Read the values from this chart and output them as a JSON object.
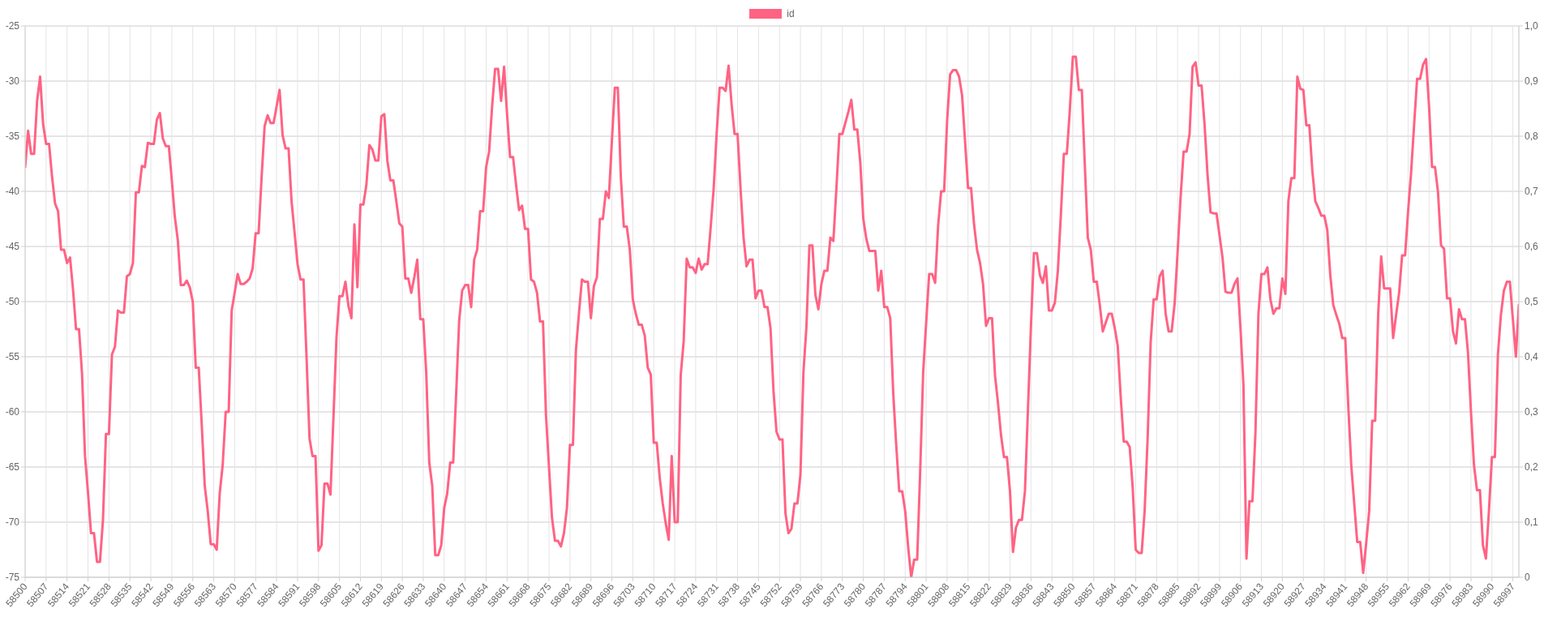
{
  "chart_data": {
    "type": "line",
    "series": [
      {
        "name": "id",
        "color": "#ff6384",
        "x": [
          58500,
          58501,
          58502,
          58503,
          58504,
          58505,
          58506,
          58507,
          58508,
          58509,
          58510,
          58511,
          58512,
          58513,
          58514,
          58515,
          58516,
          58517,
          58518,
          58519,
          58520,
          58521,
          58522,
          58523,
          58524,
          58525,
          58526,
          58527,
          58528,
          58529,
          58530,
          58531,
          58532,
          58533,
          58534,
          58535,
          58536,
          58537,
          58538,
          58539,
          58540,
          58541,
          58542,
          58543,
          58544,
          58545,
          58546,
          58547,
          58548,
          58549,
          58550,
          58551,
          58552,
          58553,
          58554,
          58555,
          58556,
          58557,
          58558,
          58559,
          58560,
          58561,
          58562,
          58563,
          58564,
          58565,
          58566,
          58567,
          58568,
          58569,
          58570,
          58571,
          58572,
          58573,
          58574,
          58575,
          58576,
          58577,
          58578,
          58579,
          58580,
          58581,
          58582,
          58583,
          58584,
          58585,
          58586,
          58587,
          58588,
          58589,
          58590,
          58591,
          58592,
          58593,
          58594,
          58595,
          58596,
          58597,
          58598,
          58599,
          58600,
          58601,
          58602,
          58603,
          58604,
          58605,
          58606,
          58607,
          58608,
          58609,
          58610,
          58611,
          58612,
          58613,
          58614,
          58615,
          58616,
          58617,
          58618,
          58619,
          58620,
          58621,
          58622,
          58623,
          58624,
          58625,
          58626,
          58627,
          58628,
          58629,
          58630,
          58631,
          58632,
          58633,
          58634,
          58635,
          58636,
          58637,
          58638,
          58639,
          58640,
          58641,
          58642,
          58643,
          58644,
          58645,
          58646,
          58647,
          58648,
          58649,
          58650,
          58651,
          58652,
          58653,
          58654,
          58655,
          58656,
          58657,
          58658,
          58659,
          58660,
          58661,
          58662,
          58663,
          58664,
          58665,
          58666,
          58667,
          58668,
          58669,
          58670,
          58671,
          58672,
          58673,
          58674,
          58675,
          58676,
          58677,
          58678,
          58679,
          58680,
          58681,
          58682,
          58683,
          58684,
          58685,
          58686,
          58687,
          58688,
          58689,
          58690,
          58691,
          58692,
          58693,
          58694,
          58695,
          58696,
          58697,
          58698,
          58699,
          58700,
          58701,
          58702,
          58703,
          58704,
          58705,
          58706,
          58707,
          58708,
          58709,
          58710,
          58711,
          58712,
          58713,
          58714,
          58715,
          58716,
          58717,
          58718,
          58719,
          58720,
          58721,
          58722,
          58723,
          58724,
          58725,
          58726,
          58727,
          58728,
          58729,
          58730,
          58731,
          58732,
          58733,
          58734,
          58735,
          58736,
          58737,
          58738,
          58739,
          58740,
          58741,
          58742,
          58743,
          58744,
          58745,
          58746,
          58747,
          58748,
          58749,
          58750,
          58751,
          58752,
          58753,
          58754,
          58755,
          58756,
          58757,
          58758,
          58759,
          58760,
          58761,
          58762,
          58763,
          58764,
          58765,
          58766,
          58767,
          58768,
          58769,
          58770,
          58771,
          58772,
          58773,
          58774,
          58775,
          58776,
          58777,
          58778,
          58779,
          58780,
          58781,
          58782,
          58783,
          58784,
          58785,
          58786,
          58787,
          58788,
          58789,
          58790,
          58791,
          58792,
          58793,
          58794,
          58795,
          58796,
          58797,
          58798,
          58799,
          58800,
          58801,
          58802,
          58803,
          58804,
          58805,
          58806,
          58807,
          58808,
          58809,
          58810,
          58811,
          58812,
          58813,
          58814,
          58815,
          58816,
          58817,
          58818,
          58819,
          58820,
          58821,
          58822,
          58823,
          58824,
          58825,
          58826,
          58827,
          58828,
          58829,
          58830,
          58831,
          58832,
          58833,
          58834,
          58835,
          58836,
          58837,
          58838,
          58839,
          58840,
          58841,
          58842,
          58843,
          58844,
          58845,
          58846,
          58847,
          58848,
          58849,
          58850,
          58851,
          58852,
          58853,
          58854,
          58855,
          58856,
          58857,
          58858,
          58859,
          58860,
          58861,
          58862,
          58863,
          58864,
          58865,
          58866,
          58867,
          58868,
          58869,
          58870,
          58871,
          58872,
          58873,
          58874,
          58875,
          58876,
          58877,
          58878,
          58879,
          58880,
          58881,
          58882,
          58883,
          58884,
          58885,
          58886,
          58887,
          58888,
          58889,
          58890,
          58891,
          58892,
          58893,
          58894,
          58895,
          58896,
          58897,
          58898,
          58899,
          58900,
          58901,
          58902,
          58903,
          58904,
          58905,
          58906,
          58907,
          58908,
          58909,
          58910,
          58911,
          58912,
          58913,
          58914,
          58915,
          58916,
          58917,
          58918,
          58919,
          58920,
          58921,
          58922,
          58923,
          58924,
          58925,
          58926,
          58927,
          58928,
          58929,
          58930,
          58931,
          58932,
          58933,
          58934,
          58935,
          58936,
          58937,
          58938,
          58939,
          58940,
          58941,
          58942,
          58943,
          58944,
          58945,
          58946,
          58947,
          58948,
          58949,
          58950,
          58951,
          58952,
          58953,
          58954,
          58955,
          58956,
          58957,
          58958,
          58959,
          58960,
          58961,
          58962,
          58963,
          58964,
          58965,
          58966,
          58967,
          58968,
          58969,
          58970,
          58971,
          58972,
          58973,
          58974,
          58975,
          58976,
          58977,
          58978,
          58979,
          58980,
          58981,
          58982,
          58983,
          58984,
          58985,
          58986,
          58987,
          58988,
          58989,
          58990,
          58991,
          58992,
          58993,
          58994,
          58995,
          58996,
          58997,
          58998,
          58999
        ],
        "values": [
          -37.8,
          -34.5,
          -36.6,
          -36.6,
          -31.8,
          -29.6,
          -33.9,
          -35.7,
          -35.7,
          -38.7,
          -41.1,
          -41.8,
          -45.3,
          -45.3,
          -46.5,
          -46.0,
          -48.9,
          -52.5,
          -52.5,
          -56.5,
          -64.0,
          -67.3,
          -71.0,
          -71.0,
          -73.6,
          -73.6,
          -69.8,
          -62.0,
          -62.0,
          -54.8,
          -54.1,
          -50.8,
          -51.0,
          -51.0,
          -47.7,
          -47.5,
          -46.5,
          -40.1,
          -40.1,
          -37.7,
          -37.8,
          -35.6,
          -35.7,
          -35.7,
          -33.5,
          -32.9,
          -35.2,
          -35.9,
          -35.9,
          -39.0,
          -42.3,
          -44.4,
          -48.5,
          -48.5,
          -48.1,
          -48.7,
          -50.0,
          -56.0,
          -56.0,
          -61.2,
          -66.7,
          -69.0,
          -72.0,
          -72.0,
          -72.5,
          -67.4,
          -64.8,
          -60.0,
          -60.0,
          -50.8,
          -49.2,
          -47.5,
          -48.4,
          -48.4,
          -48.2,
          -47.9,
          -47.0,
          -43.8,
          -43.8,
          -38.7,
          -34.1,
          -33.1,
          -33.8,
          -33.8,
          -32.3,
          -30.8,
          -34.9,
          -36.1,
          -36.1,
          -40.9,
          -43.7,
          -46.6,
          -48.0,
          -48.0,
          -55.0,
          -62.4,
          -64.0,
          -64.0,
          -72.6,
          -72.1,
          -66.5,
          -66.5,
          -67.5,
          -60.5,
          -53.3,
          -49.5,
          -49.5,
          -48.2,
          -50.4,
          -51.5,
          -43.0,
          -48.7,
          -41.2,
          -41.2,
          -39.4,
          -35.8,
          -36.2,
          -37.2,
          -37.2,
          -33.2,
          -33.0,
          -37.2,
          -39.0,
          -39.0,
          -40.9,
          -42.9,
          -43.2,
          -47.9,
          -47.9,
          -49.2,
          -47.8,
          -46.2,
          -51.6,
          -51.6,
          -56.5,
          -64.6,
          -66.7,
          -73.0,
          -73.0,
          -72.1,
          -68.7,
          -67.4,
          -64.6,
          -64.6,
          -58.3,
          -51.7,
          -49.0,
          -48.5,
          -48.5,
          -50.5,
          -46.2,
          -45.3,
          -41.8,
          -41.8,
          -37.8,
          -36.4,
          -32.3,
          -28.9,
          -28.9,
          -31.8,
          -28.7,
          -33.0,
          -36.9,
          -36.9,
          -39.4,
          -41.7,
          -41.3,
          -43.4,
          -43.4,
          -48.0,
          -48.2,
          -49.2,
          -51.8,
          -51.8,
          -60.3,
          -65.0,
          -69.6,
          -71.7,
          -71.7,
          -72.2,
          -71.0,
          -68.7,
          -63.0,
          -63.0,
          -54.4,
          -51.1,
          -48.0,
          -48.2,
          -48.2,
          -51.5,
          -48.6,
          -47.8,
          -42.5,
          -42.5,
          -40.0,
          -40.6,
          -35.5,
          -30.6,
          -30.6,
          -38.7,
          -43.2,
          -43.2,
          -45.3,
          -49.8,
          -51.1,
          -52.1,
          -52.1,
          -53.1,
          -56.0,
          -56.6,
          -62.8,
          -62.8,
          -66.0,
          -68.3,
          -70.1,
          -71.6,
          -64.0,
          -70.0,
          -70.0,
          -56.7,
          -53.6,
          -46.1,
          -46.9,
          -46.9,
          -47.4,
          -46.1,
          -47.1,
          -46.6,
          -46.6,
          -43.3,
          -39.8,
          -34.8,
          -30.6,
          -30.6,
          -30.9,
          -28.6,
          -32.1,
          -34.8,
          -34.8,
          -39.8,
          -44.2,
          -46.8,
          -46.2,
          -46.2,
          -49.7,
          -49.0,
          -49.0,
          -50.5,
          -50.5,
          -52.4,
          -58.1,
          -61.8,
          -62.5,
          -62.5,
          -69.2,
          -71.0,
          -70.6,
          -68.3,
          -68.3,
          -65.7,
          -56.4,
          -52.3,
          -44.9,
          -44.9,
          -49.4,
          -50.7,
          -48.4,
          -47.2,
          -47.2,
          -44.2,
          -44.5,
          -39.8,
          -34.8,
          -34.8,
          -33.8,
          -32.8,
          -31.7,
          -34.4,
          -34.4,
          -37.4,
          -42.5,
          -44.3,
          -45.4,
          -45.4,
          -45.4,
          -49.0,
          -47.2,
          -50.5,
          -50.5,
          -51.5,
          -58.3,
          -63.0,
          -67.2,
          -67.2,
          -69.0,
          -72.3,
          -75.0,
          -73.4,
          -73.4,
          -65.4,
          -56.4,
          -51.9,
          -47.5,
          -47.5,
          -48.3,
          -43.1,
          -40.0,
          -40.0,
          -33.6,
          -29.4,
          -29.0,
          -29.0,
          -29.6,
          -31.3,
          -35.5,
          -39.7,
          -39.7,
          -43.0,
          -45.3,
          -46.5,
          -48.4,
          -52.2,
          -51.5,
          -51.5,
          -56.7,
          -59.2,
          -62.1,
          -64.1,
          -64.1,
          -67.2,
          -72.7,
          -70.5,
          -69.8,
          -69.8,
          -67.2,
          -59.8,
          -52.3,
          -45.6,
          -45.6,
          -47.6,
          -48.3,
          -46.8,
          -50.8,
          -50.8,
          -50.1,
          -47.2,
          -42.1,
          -36.6,
          -36.6,
          -32.6,
          -27.8,
          -27.8,
          -30.8,
          -30.8,
          -37.6,
          -44.2,
          -45.3,
          -48.2,
          -48.2,
          -50.3,
          -52.7,
          -51.9,
          -51.1,
          -51.1,
          -52.4,
          -54.0,
          -58.7,
          -62.7,
          -62.7,
          -63.2,
          -66.9,
          -72.5,
          -72.8,
          -72.8,
          -68.9,
          -62.3,
          -53.7,
          -49.8,
          -49.8,
          -47.7,
          -47.2,
          -51.1,
          -52.7,
          -52.7,
          -50.2,
          -45.5,
          -40.5,
          -36.4,
          -36.4,
          -34.8,
          -28.7,
          -28.3,
          -30.4,
          -30.4,
          -33.9,
          -38.5,
          -41.9,
          -42.0,
          -42.0,
          -44.0,
          -46.0,
          -49.1,
          -49.2,
          -49.2,
          -48.4,
          -47.9,
          -52.4,
          -57.6,
          -73.3,
          -68.1,
          -68.1,
          -61.9,
          -51.1,
          -47.5,
          -47.5,
          -46.9,
          -49.8,
          -51.1,
          -50.6,
          -50.6,
          -47.9,
          -49.3,
          -40.9,
          -38.8,
          -38.8,
          -29.6,
          -30.7,
          -30.8,
          -34.0,
          -34.0,
          -38.1,
          -40.9,
          -41.5,
          -42.2,
          -42.2,
          -43.5,
          -47.6,
          -50.3,
          -51.2,
          -52.0,
          -53.3,
          -53.3,
          -59.4,
          -64.8,
          -68.3,
          -71.8,
          -71.8,
          -74.6,
          -71.9,
          -69.0,
          -60.8,
          -60.8,
          -51.2,
          -45.9,
          -48.8,
          -48.8,
          -48.8,
          -53.3,
          -51.2,
          -49.2,
          -45.8,
          -45.8,
          -41.8,
          -38.3,
          -34.0,
          -29.8,
          -29.8,
          -28.5,
          -28.0,
          -32.3,
          -37.8,
          -37.8,
          -40.1,
          -44.9,
          -45.2,
          -49.7,
          -49.7,
          -52.7,
          -53.8,
          -50.7,
          -51.6,
          -51.6,
          -54.6,
          -60.0,
          -64.8,
          -67.1,
          -67.1,
          -72.1,
          -73.3,
          -69.0,
          -64.1,
          -64.1,
          -54.8,
          -51.2,
          -49.0,
          -48.2,
          -48.2,
          -51.6,
          -55.0,
          -50.3
        ]
      }
    ],
    "xlim": [
      58500,
      58999
    ],
    "xticks": [
      58500,
      58507,
      58514,
      58521,
      58528,
      58535,
      58542,
      58549,
      58556,
      58563,
      58570,
      58577,
      58584,
      58591,
      58598,
      58605,
      58612,
      58619,
      58626,
      58633,
      58640,
      58647,
      58654,
      58661,
      58668,
      58675,
      58682,
      58689,
      58696,
      58703,
      58710,
      58717,
      58724,
      58731,
      58738,
      58745,
      58752,
      58759,
      58766,
      58773,
      58780,
      58787,
      58794,
      58801,
      58808,
      58815,
      58822,
      58829,
      58836,
      58843,
      58850,
      58857,
      58864,
      58871,
      58878,
      58885,
      58892,
      58899,
      58906,
      58913,
      58920,
      58927,
      58934,
      58941,
      58948,
      58955,
      58962,
      58969,
      58976,
      58983,
      58990,
      58997
    ],
    "ylim": [
      -75,
      -25
    ],
    "yticks": [
      -75,
      -70,
      -65,
      -60,
      -55,
      -50,
      -45,
      -40,
      -35,
      -30,
      -25
    ],
    "y2lim": [
      0,
      1
    ],
    "y2ticks": [
      0,
      {
        "value": 0.1,
        "label": "0,1"
      },
      {
        "value": 0.2,
        "label": "0,2"
      },
      {
        "value": 0.3,
        "label": "0,3"
      },
      {
        "value": 0.4,
        "label": "0,4"
      },
      {
        "value": 0.5,
        "label": "0,5"
      },
      {
        "value": 0.6,
        "label": "0,6"
      },
      {
        "value": 0.7,
        "label": "0,7"
      },
      {
        "value": 0.8,
        "label": "0,8"
      },
      {
        "value": 0.9,
        "label": "0,9"
      },
      {
        "value": 1,
        "label": "1,0"
      }
    ],
    "grid": true,
    "legend": "top",
    "marker": "none"
  }
}
